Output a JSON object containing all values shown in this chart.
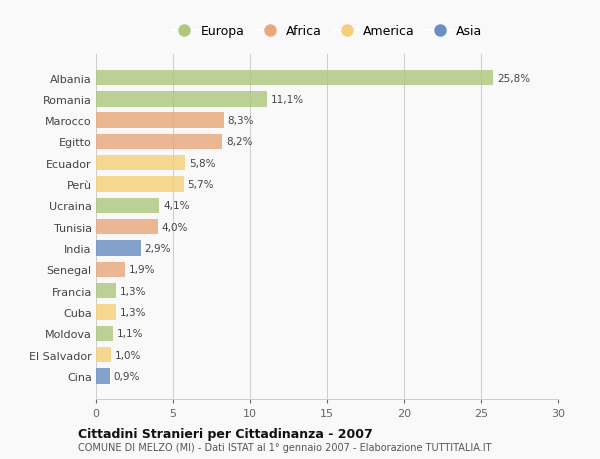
{
  "countries": [
    "Albania",
    "Romania",
    "Marocco",
    "Egitto",
    "Ecuador",
    "Perù",
    "Ucraina",
    "Tunisia",
    "India",
    "Senegal",
    "Francia",
    "Cuba",
    "Moldova",
    "El Salvador",
    "Cina"
  ],
  "values": [
    25.8,
    11.1,
    8.3,
    8.2,
    5.8,
    5.7,
    4.1,
    4.0,
    2.9,
    1.9,
    1.3,
    1.3,
    1.1,
    1.0,
    0.9
  ],
  "labels": [
    "25,8%",
    "11,1%",
    "8,3%",
    "8,2%",
    "5,8%",
    "5,7%",
    "4,1%",
    "4,0%",
    "2,9%",
    "1,9%",
    "1,3%",
    "1,3%",
    "1,1%",
    "1,0%",
    "0,9%"
  ],
  "colors": [
    "#aec97e",
    "#aec97e",
    "#e8a87c",
    "#e8a87c",
    "#f5d07a",
    "#f5d07a",
    "#aec97e",
    "#e8a87c",
    "#6b8ec2",
    "#e8a87c",
    "#aec97e",
    "#f5d07a",
    "#aec97e",
    "#f5d07a",
    "#6b8ec2"
  ],
  "legend_labels": [
    "Europa",
    "Africa",
    "America",
    "Asia"
  ],
  "legend_colors": [
    "#aec97e",
    "#e8a87c",
    "#f5d07a",
    "#6b8ec2"
  ],
  "xlim": [
    0,
    30
  ],
  "xticks": [
    0,
    5,
    10,
    15,
    20,
    25,
    30
  ],
  "title": "Cittadini Stranieri per Cittadinanza - 2007",
  "subtitle": "COMUNE DI MELZO (MI) - Dati ISTAT al 1° gennaio 2007 - Elaborazione TUTTITALIA.IT",
  "bg_color": "#f9f9f9",
  "bar_height": 0.72,
  "figsize": [
    6.0,
    4.6
  ],
  "dpi": 100
}
